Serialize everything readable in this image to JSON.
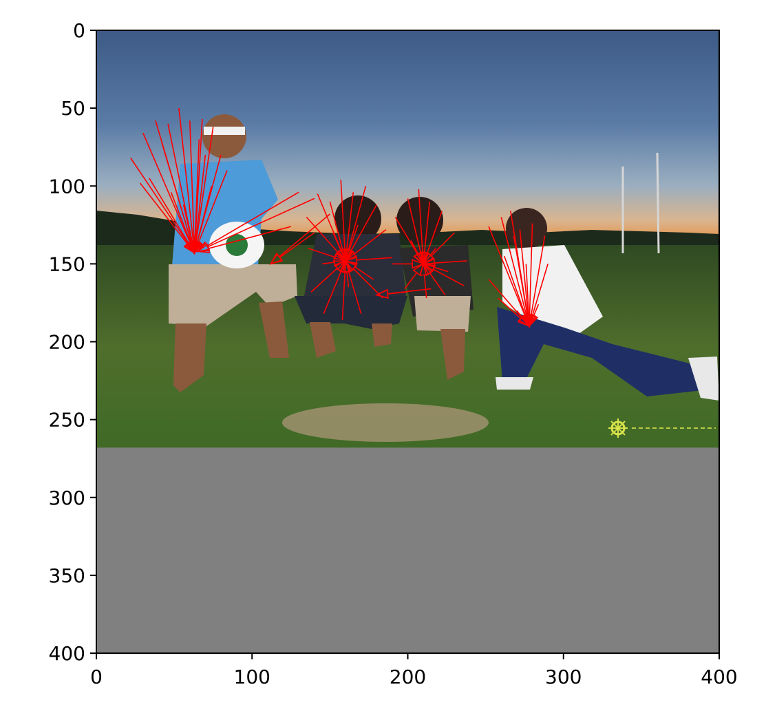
{
  "chart_data": {
    "type": "scatter",
    "title": "",
    "xlabel": "",
    "ylabel": "",
    "xlim": [
      0,
      400
    ],
    "ylim": [
      400,
      0
    ],
    "y_inverted": true,
    "grid": false,
    "x_ticks": [
      0,
      100,
      200,
      300,
      400
    ],
    "y_ticks": [
      0,
      50,
      100,
      150,
      200,
      250,
      300,
      350,
      400
    ],
    "image_extent": {
      "x": [
        0,
        400
      ],
      "y": [
        0,
        268
      ]
    },
    "padding_region": {
      "y": [
        268,
        400
      ],
      "color": "#808080"
    },
    "arrow_color": "#ff0000",
    "watermark_color": "#d8e34a",
    "groups": [
      {
        "target": [
          63,
          143
        ],
        "fan": [
          [
            22,
            82
          ],
          [
            30,
            66
          ],
          [
            38,
            58
          ],
          [
            46,
            60
          ],
          [
            53,
            50
          ],
          [
            60,
            58
          ],
          [
            68,
            57
          ],
          [
            75,
            62
          ],
          [
            80,
            80
          ],
          [
            84,
            90
          ],
          [
            70,
            80
          ],
          [
            42,
            72
          ],
          [
            34,
            95
          ],
          [
            28,
            98
          ],
          [
            48,
            104
          ],
          [
            56,
            112
          ],
          [
            74,
            100
          ],
          [
            66,
            70
          ]
        ]
      },
      {
        "target": [
          160,
          148
        ],
        "fan": [
          [
            135,
            120
          ],
          [
            142,
            105
          ],
          [
            150,
            110
          ],
          [
            157,
            96
          ],
          [
            165,
            104
          ],
          [
            173,
            100
          ],
          [
            180,
            112
          ],
          [
            186,
            128
          ],
          [
            190,
            146
          ],
          [
            184,
            172
          ],
          [
            170,
            182
          ],
          [
            158,
            186
          ],
          [
            146,
            182
          ],
          [
            138,
            168
          ],
          [
            136,
            140
          ],
          [
            152,
            130
          ],
          [
            168,
            125
          ],
          [
            178,
            160
          ],
          [
            145,
            150
          ],
          [
            162,
            165
          ]
        ]
      },
      {
        "target": [
          210,
          150
        ],
        "fan": [
          [
            192,
            120
          ],
          [
            200,
            108
          ],
          [
            207,
            102
          ],
          [
            214,
            110
          ],
          [
            222,
            116
          ],
          [
            230,
            130
          ],
          [
            238,
            148
          ],
          [
            236,
            164
          ],
          [
            224,
            170
          ],
          [
            212,
            172
          ],
          [
            198,
            166
          ],
          [
            190,
            150
          ],
          [
            202,
            135
          ],
          [
            218,
            140
          ],
          [
            226,
            155
          ]
        ]
      },
      {
        "target": [
          278,
          190
        ],
        "fan": [
          [
            252,
            126
          ],
          [
            260,
            120
          ],
          [
            266,
            116
          ],
          [
            272,
            128
          ],
          [
            280,
            124
          ],
          [
            288,
            132
          ],
          [
            290,
            150
          ],
          [
            284,
            176
          ],
          [
            270,
            180
          ],
          [
            258,
            172
          ],
          [
            252,
            160
          ],
          [
            262,
            145
          ],
          [
            276,
            150
          ],
          [
            268,
            132
          ]
        ]
      },
      {
        "target": [
          65,
          142
        ],
        "fan": [
          [
            140,
            108
          ],
          [
            130,
            104
          ],
          [
            125,
            126
          ]
        ]
      },
      {
        "target": [
          112,
          150
        ],
        "fan": [
          [
            140,
            130
          ],
          [
            150,
            118
          ]
        ]
      },
      {
        "target": [
          180,
          170
        ],
        "fan": [
          [
            200,
            168
          ],
          [
            215,
            166
          ]
        ]
      }
    ]
  }
}
